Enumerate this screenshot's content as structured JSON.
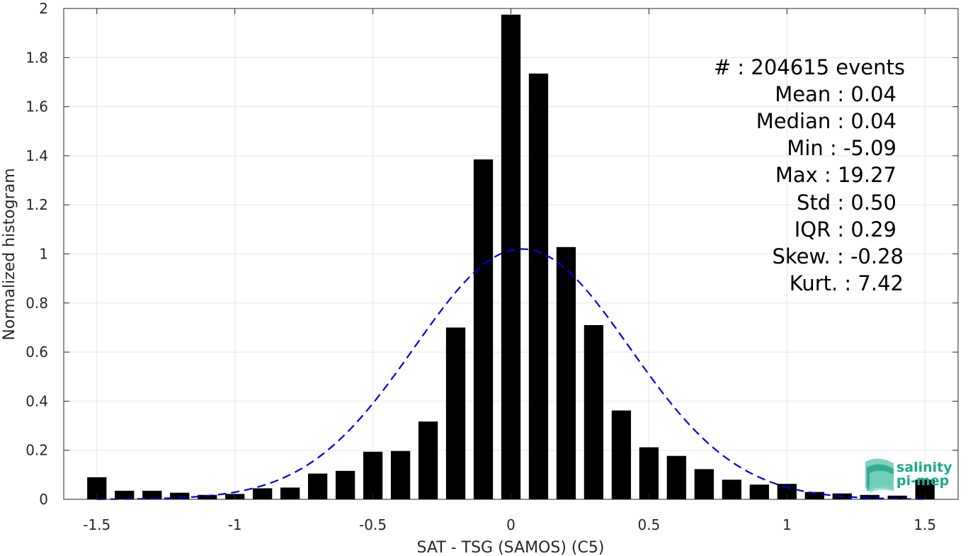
{
  "chart_data": {
    "type": "bar",
    "xlabel": "SAT - TSG (SAMOS) (C5)",
    "ylabel": "Normalized histogram",
    "xlim": [
      -1.62,
      1.62
    ],
    "ylim": [
      0,
      2
    ],
    "grid": true,
    "xticks": [
      -1.5,
      -1,
      -0.5,
      0,
      0.5,
      1,
      1.5
    ],
    "xtick_labels": [
      "-1.5",
      "-1",
      "-0.5",
      "0",
      "0.5",
      "1",
      "1.5"
    ],
    "yticks": [
      0,
      0.2,
      0.4,
      0.6,
      0.8,
      1,
      1.2,
      1.4,
      1.6,
      1.8,
      2
    ],
    "ytick_labels": [
      "0",
      "0.2",
      "0.4",
      "0.6",
      "0.8",
      "1",
      "1.2",
      "1.4",
      "1.6",
      "1.8",
      "2"
    ],
    "bar_width": 0.07,
    "x": [
      -1.5,
      -1.4,
      -1.3,
      -1.2,
      -1.1,
      -1.0,
      -0.9,
      -0.8,
      -0.7,
      -0.6,
      -0.5,
      -0.4,
      -0.3,
      -0.2,
      -0.1,
      0.0,
      0.1,
      0.2,
      0.3,
      0.4,
      0.5,
      0.6,
      0.7,
      0.8,
      0.9,
      1.0,
      1.1,
      1.2,
      1.3,
      1.4,
      1.5
    ],
    "values": [
      0.09,
      0.035,
      0.035,
      0.027,
      0.018,
      0.022,
      0.045,
      0.048,
      0.105,
      0.116,
      0.194,
      0.197,
      0.317,
      0.7,
      1.385,
      1.975,
      1.735,
      1.028,
      0.71,
      0.362,
      0.212,
      0.177,
      0.123,
      0.08,
      0.06,
      0.063,
      0.03,
      0.024,
      0.018,
      0.015,
      0.08
    ],
    "bar_color": "#000000",
    "fit_curve": {
      "type": "gaussian",
      "mean": 0.04,
      "std": 0.39,
      "peak": 1.02,
      "color": "#0000e0",
      "style": "dashed"
    },
    "stats": [
      {
        "label": "#  : 204615 events"
      },
      {
        "label": "Mean : 0.04"
      },
      {
        "label": "Median : 0.04"
      },
      {
        "label": "Min : -5.09"
      },
      {
        "label": "Max : 19.27"
      },
      {
        "label": "Std : 0.50"
      },
      {
        "label": "IQR : 0.29"
      },
      {
        "label": "Skew. : -0.28"
      },
      {
        "label": "Kurt. : 7.42"
      }
    ]
  },
  "logo": {
    "line1": "salinity",
    "line2": "pi-mep",
    "color": "#1aab8a"
  }
}
